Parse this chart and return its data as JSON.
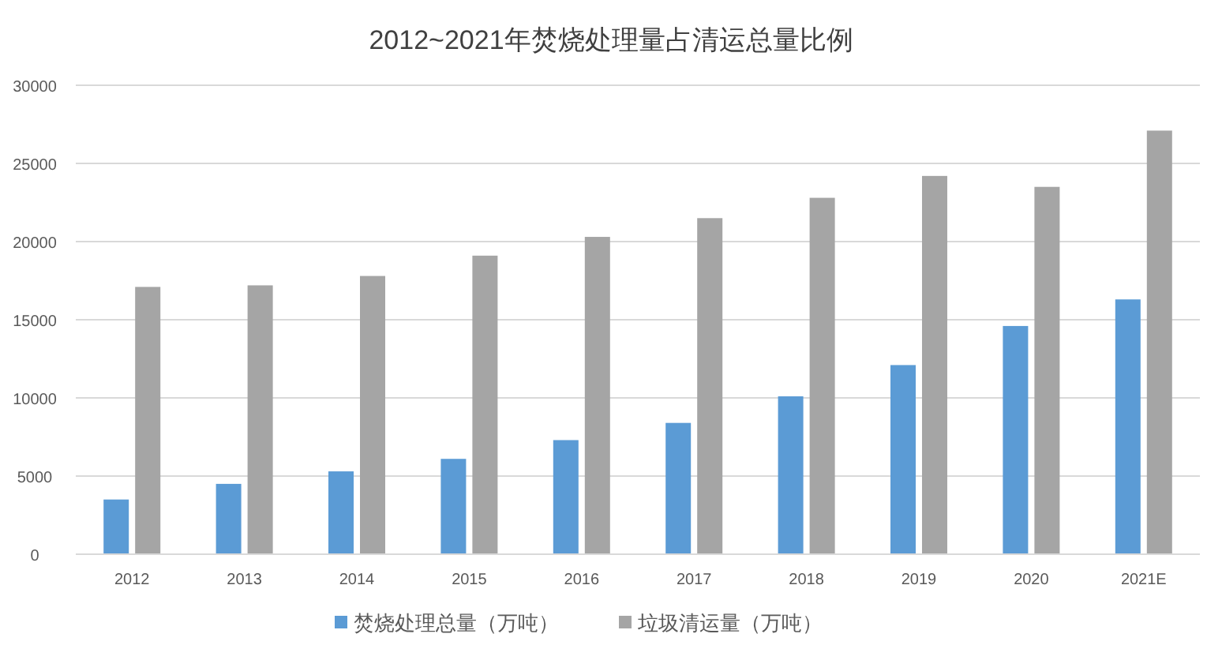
{
  "chart_data": {
    "type": "bar",
    "title": "2012~2021年焚烧处理量占清运总量比例",
    "categories": [
      "2012",
      "2013",
      "2014",
      "2015",
      "2016",
      "2017",
      "2018",
      "2019",
      "2020",
      "2021E"
    ],
    "series": [
      {
        "name": "焚烧处理总量（万吨）",
        "color": "#5b9bd5",
        "values": [
          3500,
          4500,
          5300,
          6100,
          7300,
          8400,
          10100,
          12100,
          14600,
          16300
        ]
      },
      {
        "name": "垃圾清运量（万吨）",
        "color": "#a5a5a5",
        "values": [
          17100,
          17200,
          17800,
          19100,
          20300,
          21500,
          22800,
          24200,
          23500,
          27100
        ]
      }
    ],
    "ylim": [
      0,
      30000
    ],
    "yticks": [
      0,
      5000,
      10000,
      15000,
      20000,
      25000,
      30000
    ],
    "grid": "y",
    "legend": "bottom"
  }
}
